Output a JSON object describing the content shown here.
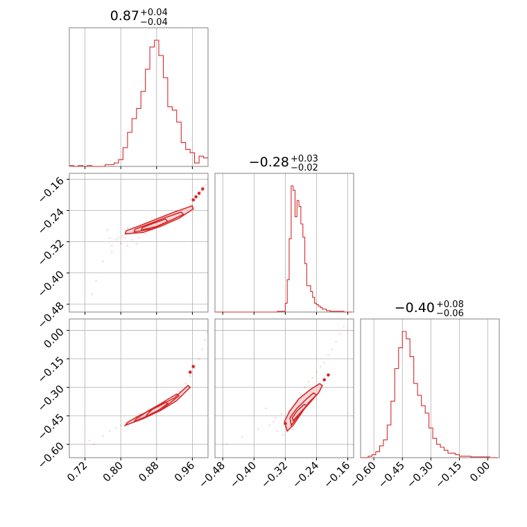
{
  "chart_data": {
    "type": "corner",
    "parameters": [
      {
        "value": "0.87",
        "plus": "+0.04",
        "minus": "−0.04",
        "range": [
          0.685,
          0.995
        ],
        "ticks": [
          0.72,
          0.8,
          0.88,
          0.96
        ],
        "tick_labels": [
          "0.72",
          "0.80",
          "0.88",
          "0.96"
        ]
      },
      {
        "value": "−0.28",
        "plus": "+0.03",
        "minus": "−0.02",
        "range": [
          -0.5,
          -0.145
        ],
        "ticks": [
          -0.48,
          -0.4,
          -0.32,
          -0.24,
          -0.16
        ],
        "tick_labels": [
          "−0.48",
          "−0.40",
          "−0.32",
          "−0.24",
          "−0.16"
        ]
      },
      {
        "value": "−0.40",
        "plus": "+0.08",
        "minus": "−0.06",
        "range": [
          -0.67,
          0.06
        ],
        "ticks": [
          -0.6,
          -0.45,
          -0.3,
          -0.15,
          0.0
        ],
        "tick_labels": [
          "−0.60",
          "−0.45",
          "−0.30",
          "−0.15",
          "0.00"
        ]
      }
    ],
    "color": "#d62728",
    "grid": true,
    "histograms": [
      {
        "parameter": 0,
        "bin_edges": [
          0.685,
          0.695,
          0.705,
          0.715,
          0.725,
          0.735,
          0.745,
          0.755,
          0.765,
          0.775,
          0.785,
          0.795,
          0.805,
          0.815,
          0.825,
          0.835,
          0.845,
          0.855,
          0.865,
          0.875,
          0.885,
          0.895,
          0.905,
          0.915,
          0.925,
          0.935,
          0.945,
          0.955,
          0.965,
          0.975,
          0.985,
          0.995
        ],
        "counts": [
          0.5,
          0,
          0.5,
          0,
          0.5,
          0,
          0,
          0,
          1,
          1,
          2,
          4,
          11,
          20,
          28,
          34,
          44,
          57,
          70,
          74,
          65,
          52,
          35,
          33,
          26,
          14,
          10,
          8,
          2,
          6,
          5
        ]
      },
      {
        "parameter": 1,
        "bin_edges": [
          -0.5,
          -0.49,
          -0.48,
          -0.47,
          -0.46,
          -0.45,
          -0.44,
          -0.43,
          -0.42,
          -0.41,
          -0.4,
          -0.39,
          -0.38,
          -0.37,
          -0.36,
          -0.35,
          -0.34,
          -0.33,
          -0.32,
          -0.315,
          -0.31,
          -0.305,
          -0.3,
          -0.295,
          -0.29,
          -0.285,
          -0.28,
          -0.275,
          -0.27,
          -0.265,
          -0.26,
          -0.255,
          -0.25,
          -0.245,
          -0.24,
          -0.235,
          -0.23,
          -0.225,
          -0.22,
          -0.215,
          -0.21,
          -0.205,
          -0.2,
          -0.19,
          -0.18,
          -0.17,
          -0.16,
          -0.15
        ],
        "counts": [
          0,
          0,
          0,
          0,
          0,
          0,
          0,
          0,
          0,
          0,
          0,
          0,
          0,
          0,
          0,
          0,
          0.5,
          0.5,
          6,
          22,
          50,
          86,
          83,
          65,
          76,
          72,
          60,
          51,
          33,
          18,
          18,
          14,
          10,
          6,
          5,
          4,
          3,
          2,
          2,
          1,
          1,
          0.5,
          0.5,
          0.5,
          0.5,
          0,
          0
        ]
      },
      {
        "parameter": 2,
        "bin_edges": [
          -0.67,
          -0.65,
          -0.63,
          -0.61,
          -0.59,
          -0.57,
          -0.55,
          -0.53,
          -0.51,
          -0.49,
          -0.47,
          -0.45,
          -0.43,
          -0.41,
          -0.39,
          -0.37,
          -0.35,
          -0.33,
          -0.31,
          -0.29,
          -0.27,
          -0.25,
          -0.23,
          -0.21,
          -0.19,
          -0.17,
          -0.15,
          -0.13,
          -0.11,
          -0.09,
          -0.07,
          -0.05,
          -0.03,
          -0.01,
          0.01,
          0.03,
          0.05
        ],
        "counts": [
          0,
          0,
          1,
          2,
          4,
          8,
          12,
          22,
          38,
          60,
          74,
          85,
          80,
          68,
          50,
          42,
          35,
          30,
          20,
          13,
          9,
          7,
          5,
          3,
          3,
          2,
          1,
          1,
          1,
          0.5,
          0.5,
          0.5,
          0.5,
          0.5,
          0,
          0
        ]
      }
    ],
    "pairs": [
      {
        "x": 0,
        "y": 1,
        "scatter": [
          [
            0.735,
            -0.455
          ],
          [
            0.745,
            -0.42
          ],
          [
            0.76,
            -0.37
          ],
          [
            0.775,
            -0.31
          ],
          [
            0.78,
            -0.33
          ],
          [
            0.79,
            -0.315
          ],
          [
            0.795,
            -0.31
          ],
          [
            0.8,
            -0.325
          ],
          [
            0.805,
            -0.305
          ],
          [
            0.81,
            -0.31
          ],
          [
            0.815,
            -0.33
          ],
          [
            0.82,
            -0.3
          ],
          [
            0.825,
            -0.315
          ],
          [
            0.83,
            -0.29
          ],
          [
            0.84,
            -0.31
          ],
          [
            0.845,
            -0.285
          ],
          [
            0.855,
            -0.3
          ],
          [
            0.86,
            -0.275
          ],
          [
            0.87,
            -0.29
          ],
          [
            0.88,
            -0.265
          ],
          [
            0.89,
            -0.28
          ],
          [
            0.9,
            -0.255
          ],
          [
            0.91,
            -0.265
          ],
          [
            0.92,
            -0.245
          ],
          [
            0.93,
            -0.25
          ],
          [
            0.945,
            -0.235
          ],
          [
            0.955,
            -0.225
          ],
          [
            0.965,
            -0.215
          ],
          [
            0.975,
            -0.205
          ],
          [
            0.98,
            -0.19
          ],
          [
            0.985,
            -0.18
          ],
          [
            0.99,
            -0.175
          ],
          [
            0.994,
            -0.16
          ],
          [
            0.78,
            -0.345
          ],
          [
            0.77,
            -0.29
          ],
          [
            0.815,
            -0.285
          ],
          [
            0.835,
            -0.325
          ]
        ],
        "contours": [
          [
            [
              0.81,
              -0.3
            ],
            [
              0.85,
              -0.296
            ],
            [
              0.89,
              -0.28
            ],
            [
              0.93,
              -0.26
            ],
            [
              0.962,
              -0.236
            ],
            [
              0.96,
              -0.228
            ],
            [
              0.92,
              -0.244
            ],
            [
              0.88,
              -0.262
            ],
            [
              0.84,
              -0.28
            ],
            [
              0.812,
              -0.292
            ]
          ],
          [
            [
              0.83,
              -0.295
            ],
            [
              0.87,
              -0.287
            ],
            [
              0.91,
              -0.266
            ],
            [
              0.94,
              -0.25
            ],
            [
              0.935,
              -0.244
            ],
            [
              0.9,
              -0.258
            ],
            [
              0.86,
              -0.276
            ],
            [
              0.832,
              -0.288
            ]
          ],
          [
            [
              0.846,
              -0.29
            ],
            [
              0.88,
              -0.281
            ],
            [
              0.905,
              -0.268
            ],
            [
              0.9,
              -0.262
            ],
            [
              0.87,
              -0.274
            ],
            [
              0.848,
              -0.284
            ]
          ]
        ],
        "dots": [
          [
            0.962,
            -0.213
          ],
          [
            0.968,
            -0.205
          ],
          [
            0.975,
            -0.196
          ],
          [
            0.983,
            -0.185
          ]
        ]
      },
      {
        "x": 0,
        "y": 2,
        "scatter": [
          [
            0.73,
            -0.58
          ],
          [
            0.74,
            -0.6
          ],
          [
            0.76,
            -0.555
          ],
          [
            0.775,
            -0.53
          ],
          [
            0.79,
            -0.515
          ],
          [
            0.8,
            -0.5
          ],
          [
            0.815,
            -0.49
          ],
          [
            0.83,
            -0.475
          ],
          [
            0.845,
            -0.46
          ],
          [
            0.86,
            -0.44
          ],
          [
            0.875,
            -0.42
          ],
          [
            0.885,
            -0.4
          ],
          [
            0.9,
            -0.375
          ],
          [
            0.915,
            -0.35
          ],
          [
            0.93,
            -0.32
          ],
          [
            0.945,
            -0.28
          ],
          [
            0.955,
            -0.24
          ],
          [
            0.965,
            -0.2
          ],
          [
            0.975,
            -0.15
          ],
          [
            0.982,
            -0.1
          ],
          [
            0.988,
            -0.05
          ],
          [
            0.993,
            -0.01
          ]
        ],
        "contours": [
          [
            [
              0.81,
              -0.5
            ],
            [
              0.85,
              -0.465
            ],
            [
              0.89,
              -0.42
            ],
            [
              0.925,
              -0.37
            ],
            [
              0.955,
              -0.3
            ],
            [
              0.95,
              -0.29
            ],
            [
              0.92,
              -0.355
            ],
            [
              0.88,
              -0.405
            ],
            [
              0.84,
              -0.45
            ],
            [
              0.815,
              -0.485
            ]
          ],
          [
            [
              0.83,
              -0.48
            ],
            [
              0.87,
              -0.44
            ],
            [
              0.9,
              -0.4
            ],
            [
              0.93,
              -0.345
            ],
            [
              0.925,
              -0.335
            ],
            [
              0.89,
              -0.385
            ],
            [
              0.86,
              -0.425
            ],
            [
              0.835,
              -0.465
            ]
          ],
          [
            [
              0.855,
              -0.455
            ],
            [
              0.885,
              -0.42
            ],
            [
              0.905,
              -0.385
            ],
            [
              0.9,
              -0.378
            ],
            [
              0.875,
              -0.405
            ],
            [
              0.86,
              -0.44
            ]
          ]
        ],
        "dots": [
          [
            0.955,
            -0.22
          ],
          [
            0.962,
            -0.19
          ]
        ]
      },
      {
        "x": 1,
        "y": 2,
        "scatter": [
          [
            -0.47,
            -0.6
          ],
          [
            -0.43,
            -0.56
          ],
          [
            -0.39,
            -0.52
          ],
          [
            -0.36,
            -0.5
          ],
          [
            -0.345,
            -0.46
          ],
          [
            -0.33,
            -0.44
          ],
          [
            -0.325,
            -0.55
          ],
          [
            -0.32,
            -0.48
          ],
          [
            -0.31,
            -0.42
          ],
          [
            -0.3,
            -0.52
          ],
          [
            -0.29,
            -0.38
          ],
          [
            -0.28,
            -0.34
          ],
          [
            -0.27,
            -0.3
          ],
          [
            -0.26,
            -0.27
          ],
          [
            -0.25,
            -0.25
          ],
          [
            -0.24,
            -0.22
          ],
          [
            -0.23,
            -0.19
          ],
          [
            -0.22,
            -0.17
          ],
          [
            -0.21,
            -0.13
          ],
          [
            -0.2,
            -0.1
          ],
          [
            -0.19,
            -0.06
          ],
          [
            -0.18,
            -0.02
          ],
          [
            -0.17,
            0.02
          ],
          [
            -0.35,
            -0.48
          ],
          [
            -0.37,
            -0.41
          ],
          [
            -0.34,
            -0.53
          ]
        ],
        "contours": [
          [
            [
              -0.315,
              -0.53
            ],
            [
              -0.3,
              -0.5
            ],
            [
              -0.28,
              -0.44
            ],
            [
              -0.26,
              -0.38
            ],
            [
              -0.235,
              -0.33
            ],
            [
              -0.225,
              -0.29
            ],
            [
              -0.232,
              -0.28
            ],
            [
              -0.255,
              -0.31
            ],
            [
              -0.285,
              -0.36
            ],
            [
              -0.31,
              -0.43
            ],
            [
              -0.322,
              -0.48
            ]
          ],
          [
            [
              -0.305,
              -0.5
            ],
            [
              -0.29,
              -0.46
            ],
            [
              -0.27,
              -0.41
            ],
            [
              -0.25,
              -0.365
            ],
            [
              -0.24,
              -0.34
            ],
            [
              -0.248,
              -0.33
            ],
            [
              -0.265,
              -0.36
            ],
            [
              -0.29,
              -0.41
            ],
            [
              -0.308,
              -0.46
            ]
          ],
          [
            [
              -0.3,
              -0.475
            ],
            [
              -0.28,
              -0.43
            ],
            [
              -0.265,
              -0.395
            ],
            [
              -0.272,
              -0.39
            ],
            [
              -0.29,
              -0.425
            ],
            [
              -0.302,
              -0.46
            ]
          ]
        ],
        "dots": [
          [
            -0.32,
            -0.49
          ],
          [
            -0.22,
            -0.26
          ],
          [
            -0.21,
            -0.235
          ]
        ]
      }
    ]
  }
}
